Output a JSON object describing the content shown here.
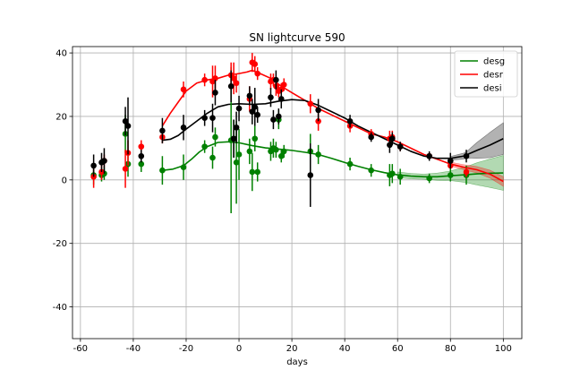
{
  "chart_data": {
    "type": "scatter",
    "title": "SN lightcurve 590",
    "xlabel": "days",
    "ylabel": "",
    "xlim": [
      -63,
      107
    ],
    "ylim": [
      -50,
      42
    ],
    "xticks": [
      -60,
      -40,
      -20,
      0,
      20,
      40,
      60,
      80,
      100
    ],
    "yticks": [
      -40,
      -20,
      0,
      20,
      40
    ],
    "grid": true,
    "legend_position": "top-right",
    "series": [
      {
        "name": "desg",
        "color": "#008000",
        "points": [
          {
            "x": -55,
            "y": 1.5,
            "err": 3
          },
          {
            "x": -52,
            "y": 1.5,
            "err": 2
          },
          {
            "x": -51,
            "y": 2,
            "err": 2
          },
          {
            "x": -43,
            "y": 14.5,
            "err": 6
          },
          {
            "x": -42,
            "y": 5,
            "err": 4
          },
          {
            "x": -37,
            "y": 5,
            "err": 2.5
          },
          {
            "x": -29,
            "y": 3,
            "err": 4.5
          },
          {
            "x": -21,
            "y": 4,
            "err": 4
          },
          {
            "x": -13,
            "y": 10.5,
            "err": 2
          },
          {
            "x": -10,
            "y": 7,
            "err": 3.5
          },
          {
            "x": -9,
            "y": 13.5,
            "err": 3
          },
          {
            "x": -3,
            "y": 12.5,
            "err": 23
          },
          {
            "x": -2,
            "y": 13,
            "err": 6
          },
          {
            "x": -1,
            "y": 5.5,
            "err": 13
          },
          {
            "x": 0,
            "y": 8,
            "err": 8
          },
          {
            "x": 4,
            "y": 9,
            "err": 4
          },
          {
            "x": 5,
            "y": 2.5,
            "err": 6
          },
          {
            "x": 6,
            "y": 13,
            "err": 4
          },
          {
            "x": 7,
            "y": 2.5,
            "err": 3
          },
          {
            "x": 12,
            "y": 9,
            "err": 3
          },
          {
            "x": 13,
            "y": 10,
            "err": 3
          },
          {
            "x": 14,
            "y": 9.5,
            "err": 2.5
          },
          {
            "x": 15,
            "y": 19,
            "err": 3
          },
          {
            "x": 16,
            "y": 7.5,
            "err": 2
          },
          {
            "x": 17,
            "y": 9,
            "err": 2
          },
          {
            "x": 27,
            "y": 9,
            "err": 5.5
          },
          {
            "x": 30,
            "y": 8,
            "err": 3
          },
          {
            "x": 42,
            "y": 5,
            "err": 2
          },
          {
            "x": 50,
            "y": 3,
            "err": 2
          },
          {
            "x": 57,
            "y": 1.5,
            "err": 3.5
          },
          {
            "x": 58,
            "y": 2,
            "err": 3
          },
          {
            "x": 61,
            "y": 1,
            "err": 2.5
          },
          {
            "x": 72,
            "y": 0.5,
            "err": 1.5
          },
          {
            "x": 80,
            "y": 1.5,
            "err": 2
          },
          {
            "x": 86,
            "y": 1.5,
            "err": 3
          }
        ],
        "fit": [
          [
            -29,
            3
          ],
          [
            -25,
            3.4
          ],
          [
            -21,
            4.5
          ],
          [
            -18,
            6.5
          ],
          [
            -15,
            8.8
          ],
          [
            -12,
            10.5
          ],
          [
            -8,
            11.8
          ],
          [
            -4,
            12
          ],
          [
            0,
            11.7
          ],
          [
            5,
            10.8
          ],
          [
            10,
            10.1
          ],
          [
            15,
            9.7
          ],
          [
            20,
            9.3
          ],
          [
            25,
            8.7
          ],
          [
            30,
            8
          ],
          [
            35,
            6.8
          ],
          [
            40,
            5.5
          ],
          [
            45,
            4.3
          ],
          [
            50,
            3.2
          ],
          [
            55,
            2.3
          ],
          [
            60,
            1.6
          ],
          [
            65,
            1.2
          ],
          [
            70,
            1
          ],
          [
            75,
            1
          ],
          [
            80,
            1.3
          ],
          [
            85,
            1.6
          ],
          [
            90,
            1.9
          ],
          [
            95,
            2.1
          ],
          [
            100,
            2.2
          ]
        ],
        "band": [
          [
            60,
            0.9
          ],
          [
            70,
            0.8
          ],
          [
            80,
            1.5
          ],
          [
            86,
            2.5
          ],
          [
            90,
            3.5
          ],
          [
            95,
            4.5
          ],
          [
            100,
            5.5
          ]
        ]
      },
      {
        "name": "desr",
        "color": "#ff0000",
        "points": [
          {
            "x": -55,
            "y": 1,
            "err": 3.5
          },
          {
            "x": -52,
            "y": 2.5,
            "err": 2.5
          },
          {
            "x": -51,
            "y": 6,
            "err": 2
          },
          {
            "x": -43,
            "y": 3.5,
            "err": 6
          },
          {
            "x": -42,
            "y": 8.5,
            "err": 4
          },
          {
            "x": -37,
            "y": 10.5,
            "err": 2
          },
          {
            "x": -29,
            "y": 13.5,
            "err": 2
          },
          {
            "x": -21,
            "y": 28.5,
            "err": 2.5
          },
          {
            "x": -13,
            "y": 31.5,
            "err": 2
          },
          {
            "x": -10,
            "y": 31,
            "err": 5
          },
          {
            "x": -9,
            "y": 32,
            "err": 4
          },
          {
            "x": -3,
            "y": 33,
            "err": 4
          },
          {
            "x": -2,
            "y": 32,
            "err": 5
          },
          {
            "x": -1,
            "y": 30.5,
            "err": 3
          },
          {
            "x": 4,
            "y": 25.5,
            "err": 4
          },
          {
            "x": 5,
            "y": 37,
            "err": 3
          },
          {
            "x": 6,
            "y": 36.5,
            "err": 2.5
          },
          {
            "x": 7,
            "y": 33.5,
            "err": 2
          },
          {
            "x": 12,
            "y": 31,
            "err": 2.5
          },
          {
            "x": 13,
            "y": 31.5,
            "err": 2
          },
          {
            "x": 14,
            "y": 29.5,
            "err": 3
          },
          {
            "x": 15,
            "y": 28,
            "err": 2
          },
          {
            "x": 16,
            "y": 28.5,
            "err": 2
          },
          {
            "x": 17,
            "y": 30,
            "err": 2
          },
          {
            "x": 27,
            "y": 24,
            "err": 3
          },
          {
            "x": 30,
            "y": 18.5,
            "err": 3
          },
          {
            "x": 42,
            "y": 17,
            "err": 2
          },
          {
            "x": 50,
            "y": 14.5,
            "err": 1.5
          },
          {
            "x": 57,
            "y": 13,
            "err": 2.5
          },
          {
            "x": 58,
            "y": 13.5,
            "err": 2
          },
          {
            "x": 61,
            "y": 10.5,
            "err": 1.5
          },
          {
            "x": 72,
            "y": 7.5,
            "err": 1
          },
          {
            "x": 80,
            "y": 4.5,
            "err": 1
          },
          {
            "x": 86,
            "y": 2.5,
            "err": 1.5
          }
        ],
        "fit": [
          [
            -29,
            17
          ],
          [
            -26,
            21
          ],
          [
            -23,
            24.5
          ],
          [
            -20,
            28
          ],
          [
            -16,
            30.5
          ],
          [
            -12,
            31.5
          ],
          [
            -8,
            32
          ],
          [
            -4,
            33
          ],
          [
            0,
            33.5
          ],
          [
            3,
            34
          ],
          [
            5,
            34.5
          ],
          [
            8,
            33.5
          ],
          [
            12,
            32
          ],
          [
            16,
            29.5
          ],
          [
            20,
            27.5
          ],
          [
            25,
            25
          ],
          [
            30,
            22.5
          ],
          [
            35,
            20.5
          ],
          [
            40,
            18.5
          ],
          [
            45,
            16.5
          ],
          [
            50,
            14.5
          ],
          [
            55,
            13.5
          ],
          [
            60,
            12
          ],
          [
            65,
            10
          ],
          [
            70,
            8
          ],
          [
            75,
            6.5
          ],
          [
            80,
            5
          ],
          [
            85,
            4
          ],
          [
            90,
            3.2
          ],
          [
            95,
            1.8
          ],
          [
            100,
            -0.5
          ]
        ],
        "band": [
          [
            80,
            0.6
          ],
          [
            90,
            1
          ],
          [
            100,
            1.5
          ]
        ]
      },
      {
        "name": "desi",
        "color": "#000000",
        "points": [
          {
            "x": -55,
            "y": 4.5,
            "err": 3.5
          },
          {
            "x": -52,
            "y": 5.5,
            "err": 3
          },
          {
            "x": -51,
            "y": 6,
            "err": 4
          },
          {
            "x": -43,
            "y": 18.5,
            "err": 4.5
          },
          {
            "x": -42,
            "y": 17,
            "err": 9
          },
          {
            "x": -37,
            "y": 7.5,
            "err": 2
          },
          {
            "x": -29,
            "y": 15.5,
            "err": 4
          },
          {
            "x": -21,
            "y": 16.5,
            "err": 4
          },
          {
            "x": -13,
            "y": 19.5,
            "err": 2.5
          },
          {
            "x": -10,
            "y": 19.5,
            "err": 4.5
          },
          {
            "x": -9,
            "y": 27.5,
            "err": 4
          },
          {
            "x": -3,
            "y": 29.5,
            "err": 5
          },
          {
            "x": -2,
            "y": 13,
            "err": 6
          },
          {
            "x": -1,
            "y": 16.5,
            "err": 5
          },
          {
            "x": 0,
            "y": 22.5,
            "err": 4
          },
          {
            "x": 4,
            "y": 26.5,
            "err": 3
          },
          {
            "x": 5,
            "y": 21.5,
            "err": 4
          },
          {
            "x": 6,
            "y": 23,
            "err": 6
          },
          {
            "x": 7,
            "y": 20.5,
            "err": 2.5
          },
          {
            "x": 12,
            "y": 26,
            "err": 3
          },
          {
            "x": 13,
            "y": 19,
            "err": 3
          },
          {
            "x": 14,
            "y": 31.5,
            "err": 3
          },
          {
            "x": 15,
            "y": 20,
            "err": 2.5
          },
          {
            "x": 16,
            "y": 25.5,
            "err": 3
          },
          {
            "x": 27,
            "y": 1.5,
            "err": 10
          },
          {
            "x": 30,
            "y": 22,
            "err": 3.5
          },
          {
            "x": 42,
            "y": 18.5,
            "err": 2
          },
          {
            "x": 50,
            "y": 13.5,
            "err": 1.5
          },
          {
            "x": 57,
            "y": 11,
            "err": 2.5
          },
          {
            "x": 58,
            "y": 13,
            "err": 2
          },
          {
            "x": 61,
            "y": 10.5,
            "err": 1.5
          },
          {
            "x": 72,
            "y": 7.5,
            "err": 1.5
          },
          {
            "x": 80,
            "y": 6,
            "err": 2.5
          },
          {
            "x": 86,
            "y": 7.5,
            "err": 2
          }
        ],
        "fit": [
          [
            -29,
            12.5
          ],
          [
            -26,
            12.8
          ],
          [
            -23,
            14
          ],
          [
            -20,
            16
          ],
          [
            -16,
            18.5
          ],
          [
            -12,
            21
          ],
          [
            -8,
            23
          ],
          [
            -4,
            23.8
          ],
          [
            0,
            24
          ],
          [
            5,
            23.8
          ],
          [
            10,
            24
          ],
          [
            15,
            24.8
          ],
          [
            20,
            25.3
          ],
          [
            25,
            25
          ],
          [
            30,
            23.5
          ],
          [
            35,
            21.5
          ],
          [
            40,
            19.5
          ],
          [
            45,
            17
          ],
          [
            50,
            15
          ],
          [
            55,
            13
          ],
          [
            60,
            11
          ],
          [
            65,
            9
          ],
          [
            70,
            7.5
          ],
          [
            75,
            6.8
          ],
          [
            80,
            6.8
          ],
          [
            85,
            7.5
          ],
          [
            90,
            9.3
          ],
          [
            95,
            11
          ],
          [
            100,
            13
          ]
        ],
        "band": [
          [
            80,
            0.6
          ],
          [
            86,
            1
          ],
          [
            90,
            2.5
          ],
          [
            95,
            4
          ],
          [
            100,
            5
          ]
        ]
      }
    ]
  }
}
